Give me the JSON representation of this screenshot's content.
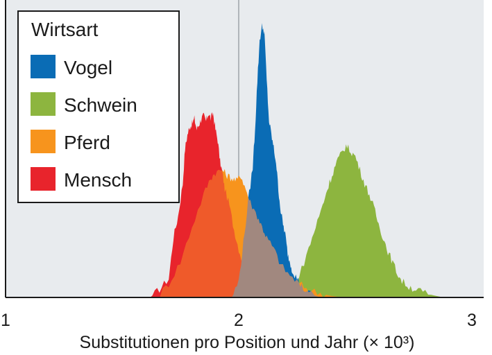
{
  "chart_data": {
    "type": "area",
    "title": "",
    "xlabel": "Substitutionen pro Position und Jahr (× 10³)",
    "ylabel": "",
    "xlim": [
      1,
      3
    ],
    "x_ticks": [
      "1",
      "2",
      "3"
    ],
    "x_tick_values": [
      1,
      2,
      3
    ],
    "reference_line_x": 2.0,
    "grid": false,
    "legend": {
      "title": "Wirtsart",
      "placement": "top-left"
    },
    "series": [
      {
        "name": "Mensch",
        "color": "#e8242c",
        "x": [
          1.62,
          1.66,
          1.7,
          1.72,
          1.74,
          1.76,
          1.77,
          1.78,
          1.79,
          1.8,
          1.81,
          1.82,
          1.83,
          1.84,
          1.85,
          1.86,
          1.87,
          1.88,
          1.89,
          1.9,
          1.91,
          1.92,
          1.93,
          1.94,
          1.96,
          1.98,
          2.0,
          2.02,
          2.05,
          2.08,
          2.12,
          2.16,
          2.2,
          2.25,
          2.3
        ],
        "values": [
          0.0,
          0.03,
          0.07,
          0.22,
          0.3,
          0.42,
          0.55,
          0.6,
          0.63,
          0.64,
          0.66,
          0.62,
          0.64,
          0.66,
          0.67,
          0.65,
          0.68,
          0.66,
          0.68,
          0.62,
          0.58,
          0.5,
          0.46,
          0.4,
          0.34,
          0.25,
          0.18,
          0.12,
          0.08,
          0.05,
          0.03,
          0.015,
          0.008,
          0.003,
          0.0
        ]
      },
      {
        "name": "Pferd",
        "color": "#f7941d",
        "x": [
          1.65,
          1.7,
          1.75,
          1.8,
          1.85,
          1.88,
          1.9,
          1.93,
          1.95,
          1.97,
          1.99,
          2.01,
          2.03,
          2.05,
          2.08,
          2.1,
          2.12,
          2.15,
          2.18,
          2.22,
          2.26,
          2.3,
          2.35,
          2.4,
          2.45
        ],
        "values": [
          0.0,
          0.05,
          0.13,
          0.26,
          0.38,
          0.44,
          0.46,
          0.47,
          0.45,
          0.44,
          0.43,
          0.45,
          0.4,
          0.35,
          0.3,
          0.26,
          0.22,
          0.18,
          0.12,
          0.08,
          0.05,
          0.03,
          0.015,
          0.005,
          0.0
        ]
      },
      {
        "name": "Vogel",
        "color": "#0a6cb5",
        "x": [
          1.97,
          2.0,
          2.02,
          2.04,
          2.06,
          2.07,
          2.08,
          2.09,
          2.1,
          2.11,
          2.12,
          2.13,
          2.14,
          2.15,
          2.16,
          2.17,
          2.18,
          2.19,
          2.2,
          2.21,
          2.22,
          2.23,
          2.25,
          2.27,
          2.3,
          2.35
        ],
        "values": [
          0.0,
          0.06,
          0.2,
          0.35,
          0.48,
          0.62,
          0.8,
          0.95,
          1.0,
          0.98,
          0.8,
          0.65,
          0.6,
          0.55,
          0.5,
          0.4,
          0.32,
          0.27,
          0.23,
          0.16,
          0.13,
          0.1,
          0.07,
          0.04,
          0.015,
          0.0
        ]
      },
      {
        "name": "Schwein",
        "color": "#8db53f",
        "x": [
          2.22,
          2.26,
          2.3,
          2.33,
          2.36,
          2.38,
          2.4,
          2.42,
          2.44,
          2.46,
          2.48,
          2.5,
          2.52,
          2.54,
          2.56,
          2.58,
          2.6,
          2.62,
          2.64,
          2.66,
          2.68,
          2.7,
          2.73,
          2.76,
          2.8,
          2.85,
          2.88
        ],
        "values": [
          0.0,
          0.08,
          0.18,
          0.26,
          0.34,
          0.4,
          0.45,
          0.5,
          0.53,
          0.56,
          0.54,
          0.52,
          0.47,
          0.42,
          0.38,
          0.33,
          0.27,
          0.22,
          0.17,
          0.13,
          0.09,
          0.06,
          0.04,
          0.03,
          0.015,
          0.005,
          0.0
        ]
      }
    ]
  },
  "colors": {
    "plot_background": "#e8ebee",
    "overlap_mensch_pferd": "#ef5a2a",
    "overlap_pferd_vogel": "#a1887f",
    "reference_line": "#9ea3a8"
  }
}
